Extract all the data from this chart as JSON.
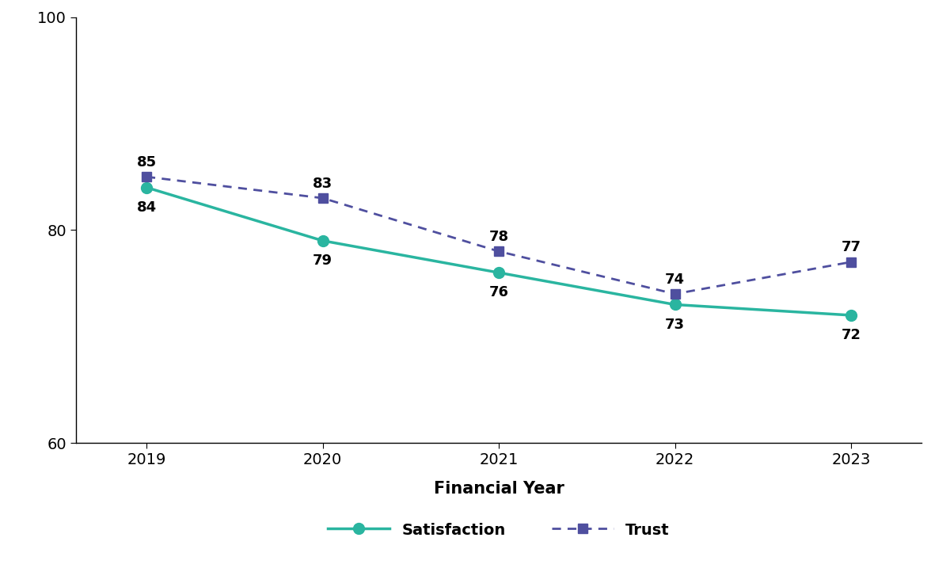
{
  "years": [
    2019,
    2020,
    2021,
    2022,
    2023
  ],
  "satisfaction": [
    84,
    79,
    76,
    73,
    72
  ],
  "trust": [
    85,
    83,
    78,
    74,
    77
  ],
  "satisfaction_color": "#2ab5a0",
  "trust_color": "#4f4f9f",
  "xlabel": "Financial Year",
  "ylim": [
    60,
    100
  ],
  "yticks": [
    60,
    80,
    100
  ],
  "background_color": "#ffffff",
  "label_satisfaction": "Satisfaction",
  "label_trust": "Trust",
  "xlabel_fontsize": 15,
  "tick_fontsize": 14,
  "annotation_fontsize": 13,
  "legend_fontsize": 14
}
